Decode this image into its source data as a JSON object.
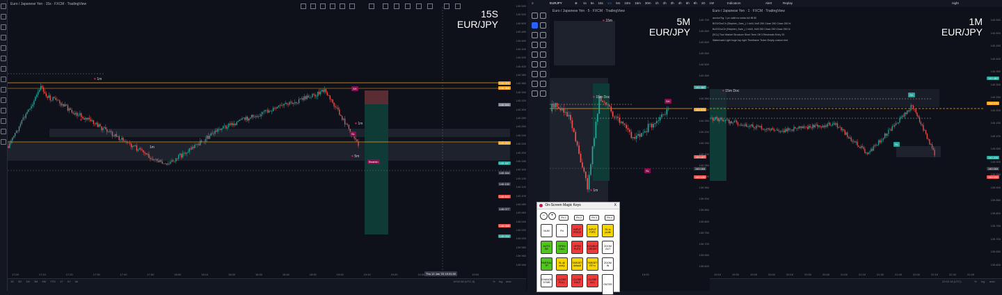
{
  "left_pane": {
    "title": "Euro / Japanese Yen · 15s · FXCM · TradingView",
    "timeframe": "15S",
    "pair": "EUR/JPY",
    "y_ticks": [
      "140.540",
      "140.520",
      "140.500",
      "140.480",
      "140.460",
      "140.440",
      "140.420",
      "140.400",
      "140.380",
      "140.360",
      "140.340",
      "140.320",
      "140.300",
      "140.280",
      "140.260",
      "140.240",
      "140.220",
      "140.200",
      "140.180",
      "140.160",
      "140.140",
      "140.120",
      "140.100",
      "140.080",
      "140.060",
      "140.040",
      "140.020",
      "140.000",
      "139.980",
      "139.960",
      "139.940"
    ],
    "x_ticks": [
      "17:00",
      "17:10",
      "17:20",
      "17:30",
      "17:40",
      "17:50",
      "18:00",
      "18:10",
      "18:20",
      "18:30",
      "18:40",
      "18:50",
      "19:00",
      "19:10",
      "19:20",
      "19:30",
      "19:40",
      "19:50"
    ],
    "crosshair_date": "Thu 12 Jan '23  19:31:00",
    "clock": "19:02:38 (UTC-5)",
    "ranges": [
      "1D",
      "5D",
      "1M",
      "3M",
      "6M",
      "YTD",
      "1Y",
      "5Y",
      "All"
    ],
    "bottom_right": [
      "%",
      "log",
      "auto"
    ],
    "price_tags": [
      {
        "text": "140.376",
        "color": "#f7a21b"
      },
      {
        "text": "140.366",
        "color": "#f7a21b"
      },
      {
        "text": "140.341",
        "color": "#787b86"
      },
      {
        "text": "140.233",
        "color": "#f7a21b"
      },
      {
        "text": "140.187",
        "color": "#26a69a"
      },
      {
        "text": "140.164",
        "color": "#363a45"
      },
      {
        "text": "140.132",
        "color": "#363a45"
      },
      {
        "text": "140.102",
        "color": "#ef5350"
      },
      {
        "text": "140.077",
        "color": "#363a45"
      },
      {
        "text": "140.065",
        "color": "#ef5350"
      },
      {
        "text": "140.034",
        "color": "#26a69a"
      }
    ],
    "markers": {
      "m1": "1m",
      "m2": "1m",
      "m3": "1m",
      "m4": "1m",
      "m5": "5m",
      "sl": "SL",
      "bearish": "Bearish"
    }
  },
  "top_toolbar": {
    "symbol": "EURJPY",
    "intervals": [
      "1s",
      "5s",
      "15s",
      "1m",
      "5m",
      "10m",
      "15m",
      "30m",
      "1h",
      "2h",
      "3h",
      "4h",
      "6h",
      "8h",
      "1D",
      "1W"
    ],
    "indicators_label": "Indicators",
    "alert_label": "Alert",
    "replay_label": "Replay",
    "layout_label": "night"
  },
  "mid_pane": {
    "title": "Euro / Japanese Yen · 5 · FXCM · TradingView",
    "timeframe": "5M",
    "pair": "EUR/JPY",
    "y_ticks": [
      "140.700",
      "140.650",
      "140.600",
      "140.550",
      "140.500",
      "140.450",
      "140.400",
      "140.350",
      "140.300",
      "140.250",
      "140.200",
      "140.150",
      "140.100",
      "140.050",
      "140.000",
      "139.950",
      "139.900",
      "139.850",
      "139.800",
      "139.750",
      "139.700",
      "139.650",
      "139.600"
    ],
    "x_ticks": [
      "17:00",
      "18:00",
      "19:00"
    ],
    "markers": {
      "d1": "15m Doc",
      "m1": "1m",
      "m2": "15m",
      "sl": "SL",
      "sh": "SH"
    },
    "price_tags": [
      {
        "text": "140.482",
        "color": "#26a69a"
      },
      {
        "text": "140.376",
        "color": "#f7a21b"
      },
      {
        "text": "140.187",
        "color": "#ef5350"
      },
      {
        "text": "140.164",
        "color": "#363a45"
      },
      {
        "text": "140.132",
        "color": "#ef5350"
      }
    ]
  },
  "right_pane": {
    "title": "Euro / Japanese Yen · 1 · FXCM · TradingView",
    "timeframe": "1M",
    "pair": "EUR/JPY",
    "legend": [
      "anchorTrg: 1 pv valid no wicks full fill 50",
      "BOS/ChoCh (Stephen_Sam_) 1 hh/ll, hh/ll 250 Close 250 Close 250 hl",
      "BoS/ChoCh (Stephen_Sam_) 1 hh/ll, hh/ll 250 Close 250 Close 250 hl",
      "[SCL] True Market Structure  Short Term  Off  3  Reversals  Entry  20",
      "Watermark Light  huge  top right  Timeframe  Ticker  Empty  custom text"
    ],
    "y_ticks": [
      "140.550",
      "140.500",
      "140.450",
      "140.400",
      "140.350",
      "140.300",
      "140.250",
      "140.200",
      "140.150",
      "140.100",
      "140.050",
      "140.000",
      "139.950",
      "139.900",
      "139.850",
      "139.800",
      "139.750",
      "139.700",
      "139.650",
      "139.600"
    ],
    "x_ticks": [
      "19:15",
      "19:30",
      "19:45",
      "20:00",
      "20:15",
      "20:30",
      "20:45",
      "21:00",
      "21:15",
      "21:30",
      "21:45",
      "22:00",
      "22:15",
      "22:30",
      "22:45"
    ],
    "clock": "22:02:18 (UTC)",
    "bottom_right": [
      "%",
      "log",
      "auto"
    ],
    "markers": {
      "d1": "15m Doc",
      "sh": "SH",
      "sl": "SL"
    },
    "price_tags": [
      {
        "text": "140.482",
        "color": "#26a69a"
      },
      {
        "text": "140.376",
        "color": "#f7a21b"
      },
      {
        "text": "140.226",
        "color": "#26a69a"
      },
      {
        "text": "140.164",
        "color": "#363a45"
      },
      {
        "text": "140.132",
        "color": "#ef5350"
      }
    ]
  },
  "magic_keys": {
    "title": "On-Screen Magic Keys",
    "close": "X",
    "fn_row": [
      "FN 1",
      "FN 2",
      "FN 3",
      "FN 4"
    ],
    "rows": [
      [
        {
          "t": "NUM",
          "c": "#ffffff"
        },
        {
          "t": "FN",
          "c": "#ffffff"
        },
        {
          "t": "INPUT PRICE",
          "c": "#f03a3a"
        },
        {
          "t": "INPUT PIPS",
          "c": "#f5d400"
        },
        {
          "t": "SL to profit",
          "c": "#f5d400"
        }
      ],
      [
        {
          "t": "AUTO BE",
          "c": "#4fc41b"
        },
        {
          "t": "OPEN CALL",
          "c": "#4fc41b"
        },
        {
          "t": "OPEN PUTS",
          "c": "#f03a3a"
        },
        {
          "t": "DOUBLE ORDER",
          "c": "#f03a3a"
        },
        {
          "t": "ZOOM OUT",
          "c": "#ffffff"
        }
      ],
      [
        {
          "t": "PARTIAL TP",
          "c": "#4fc41b"
        },
        {
          "t": "SL @ entry",
          "c": "#f5d400"
        },
        {
          "t": "TARGET default",
          "c": "#f5d400"
        },
        {
          "t": "TARGET RT+x",
          "c": "#f5d400"
        },
        {
          "t": "ZOOM IN",
          "c": "#ffffff"
        }
      ],
      [
        {
          "t": "CHANGE SYMB",
          "c": "#ffffff"
        },
        {
          "t": "CLOSE FULL",
          "c": "#f03a3a"
        },
        {
          "t": "CLOSE HALF",
          "c": "#f03a3a"
        },
        {
          "t": "CLOSE ALL",
          "c": "#f03a3a"
        },
        {
          "t": "ENTER",
          "c": "#ffffff"
        }
      ]
    ]
  },
  "colors": {
    "bg": "#0f111a",
    "bull": "#26a69a",
    "bear": "#ef5350",
    "level": "#f7a21b"
  }
}
